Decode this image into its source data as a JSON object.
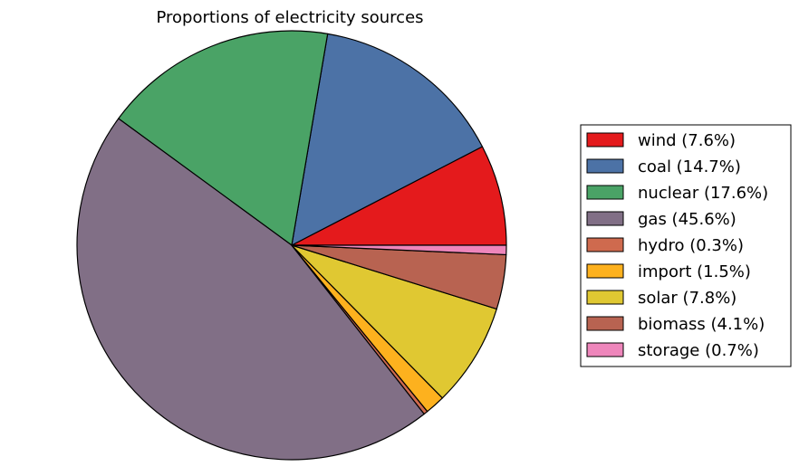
{
  "chart_data": {
    "type": "pie",
    "title": "Proportions of electricity sources",
    "start_angle_deg": 0,
    "direction": "counterclockwise",
    "legend_position": "right",
    "slices": [
      {
        "label": "wind",
        "value": 7.6,
        "legend": "wind (7.6%)",
        "color": "#e41a1c"
      },
      {
        "label": "coal",
        "value": 14.7,
        "legend": "coal (14.7%)",
        "color": "#4c72a6"
      },
      {
        "label": "nuclear",
        "value": 17.6,
        "legend": "nuclear (17.6%)",
        "color": "#4aa366"
      },
      {
        "label": "gas",
        "value": 45.6,
        "legend": "gas (45.6%)",
        "color": "#816f86"
      },
      {
        "label": "hydro",
        "value": 0.3,
        "legend": "hydro (0.3%)",
        "color": "#cf6a4e"
      },
      {
        "label": "import",
        "value": 1.5,
        "legend": "import (1.5%)",
        "color": "#fdb11e"
      },
      {
        "label": "solar",
        "value": 7.8,
        "legend": "solar (7.8%)",
        "color": "#e0c832"
      },
      {
        "label": "biomass",
        "value": 4.1,
        "legend": "biomass (4.1%)",
        "color": "#b86351"
      },
      {
        "label": "storage",
        "value": 0.7,
        "legend": "storage (0.7%)",
        "color": "#ee86bb"
      }
    ]
  }
}
